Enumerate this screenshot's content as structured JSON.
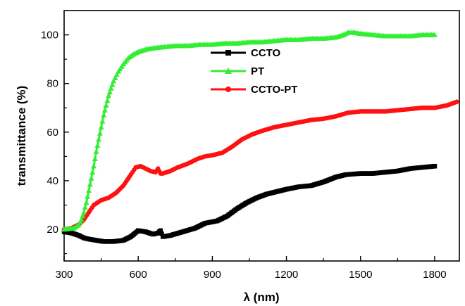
{
  "chart_data": {
    "type": "line",
    "xlabel": "λ (nm)",
    "ylabel": "transmittance (%)",
    "xlim": [
      300,
      1900
    ],
    "ylim": [
      7,
      110
    ],
    "x_ticks": [
      300,
      600,
      900,
      1200,
      1500,
      1800
    ],
    "y_ticks": [
      20,
      40,
      60,
      80,
      100
    ],
    "grid": false,
    "legend_position": "top-center",
    "series": [
      {
        "name": "CCTO",
        "color": "#000000",
        "marker": "square",
        "points": [
          [
            300,
            19
          ],
          [
            330,
            18.5
          ],
          [
            360,
            17.5
          ],
          [
            380,
            16.5
          ],
          [
            400,
            16
          ],
          [
            430,
            15.5
          ],
          [
            460,
            15
          ],
          [
            500,
            15
          ],
          [
            540,
            15.5
          ],
          [
            570,
            17
          ],
          [
            600,
            19.5
          ],
          [
            630,
            19
          ],
          [
            660,
            18
          ],
          [
            680,
            18.5
          ],
          [
            690,
            19.5
          ],
          [
            700,
            17
          ],
          [
            730,
            17.5
          ],
          [
            780,
            19
          ],
          [
            830,
            20.5
          ],
          [
            870,
            22.5
          ],
          [
            920,
            23.5
          ],
          [
            960,
            25.5
          ],
          [
            1000,
            28.5
          ],
          [
            1040,
            31
          ],
          [
            1080,
            33
          ],
          [
            1120,
            34.5
          ],
          [
            1160,
            35.5
          ],
          [
            1200,
            36.5
          ],
          [
            1250,
            37.5
          ],
          [
            1300,
            38
          ],
          [
            1350,
            39.5
          ],
          [
            1400,
            41.5
          ],
          [
            1440,
            42.5
          ],
          [
            1500,
            43
          ],
          [
            1550,
            43
          ],
          [
            1600,
            43.5
          ],
          [
            1650,
            44
          ],
          [
            1700,
            45
          ],
          [
            1750,
            45.5
          ],
          [
            1800,
            46
          ]
        ]
      },
      {
        "name": "PT",
        "color": "#33ee33",
        "marker": "triangle",
        "points": [
          [
            300,
            20
          ],
          [
            340,
            20.5
          ],
          [
            360,
            22
          ],
          [
            370,
            24
          ],
          [
            380,
            27
          ],
          [
            390,
            31
          ],
          [
            400,
            36
          ],
          [
            410,
            41
          ],
          [
            420,
            46
          ],
          [
            430,
            52
          ],
          [
            440,
            57
          ],
          [
            450,
            62
          ],
          [
            460,
            67
          ],
          [
            470,
            71
          ],
          [
            480,
            75
          ],
          [
            490,
            78
          ],
          [
            500,
            81
          ],
          [
            520,
            85
          ],
          [
            540,
            88
          ],
          [
            560,
            90.5
          ],
          [
            580,
            92
          ],
          [
            600,
            93
          ],
          [
            630,
            94
          ],
          [
            660,
            94.5
          ],
          [
            700,
            95
          ],
          [
            750,
            95.5
          ],
          [
            800,
            95.5
          ],
          [
            850,
            96
          ],
          [
            900,
            96
          ],
          [
            950,
            96.5
          ],
          [
            1000,
            96.5
          ],
          [
            1050,
            97
          ],
          [
            1100,
            97
          ],
          [
            1150,
            97.5
          ],
          [
            1200,
            98
          ],
          [
            1250,
            98
          ],
          [
            1300,
            98.5
          ],
          [
            1350,
            98.5
          ],
          [
            1400,
            99
          ],
          [
            1430,
            100
          ],
          [
            1450,
            101
          ],
          [
            1470,
            101
          ],
          [
            1500,
            100.5
          ],
          [
            1550,
            100
          ],
          [
            1600,
            99.5
          ],
          [
            1650,
            99.5
          ],
          [
            1700,
            99.5
          ],
          [
            1750,
            100
          ],
          [
            1800,
            100
          ]
        ]
      },
      {
        "name": "CCTO-PT",
        "color": "#ff1111",
        "marker": "circle",
        "points": [
          [
            300,
            20
          ],
          [
            330,
            20.5
          ],
          [
            360,
            22
          ],
          [
            380,
            24
          ],
          [
            400,
            27
          ],
          [
            420,
            30
          ],
          [
            450,
            32
          ],
          [
            480,
            33
          ],
          [
            510,
            35
          ],
          [
            540,
            38
          ],
          [
            570,
            42.5
          ],
          [
            590,
            45.5
          ],
          [
            610,
            46
          ],
          [
            630,
            45
          ],
          [
            650,
            44
          ],
          [
            670,
            43.5
          ],
          [
            680,
            45
          ],
          [
            690,
            43
          ],
          [
            700,
            43
          ],
          [
            730,
            44
          ],
          [
            760,
            45.5
          ],
          [
            800,
            47
          ],
          [
            840,
            49
          ],
          [
            870,
            50
          ],
          [
            900,
            50.5
          ],
          [
            940,
            51.5
          ],
          [
            980,
            54
          ],
          [
            1020,
            57
          ],
          [
            1060,
            59
          ],
          [
            1100,
            60.5
          ],
          [
            1150,
            62
          ],
          [
            1200,
            63
          ],
          [
            1250,
            64
          ],
          [
            1300,
            65
          ],
          [
            1350,
            65.5
          ],
          [
            1400,
            66.5
          ],
          [
            1450,
            68
          ],
          [
            1500,
            68.5
          ],
          [
            1550,
            68.5
          ],
          [
            1600,
            68.5
          ],
          [
            1650,
            69
          ],
          [
            1700,
            69.5
          ],
          [
            1750,
            70
          ],
          [
            1800,
            70
          ],
          [
            1850,
            71
          ],
          [
            1890,
            72.5
          ]
        ]
      }
    ]
  }
}
